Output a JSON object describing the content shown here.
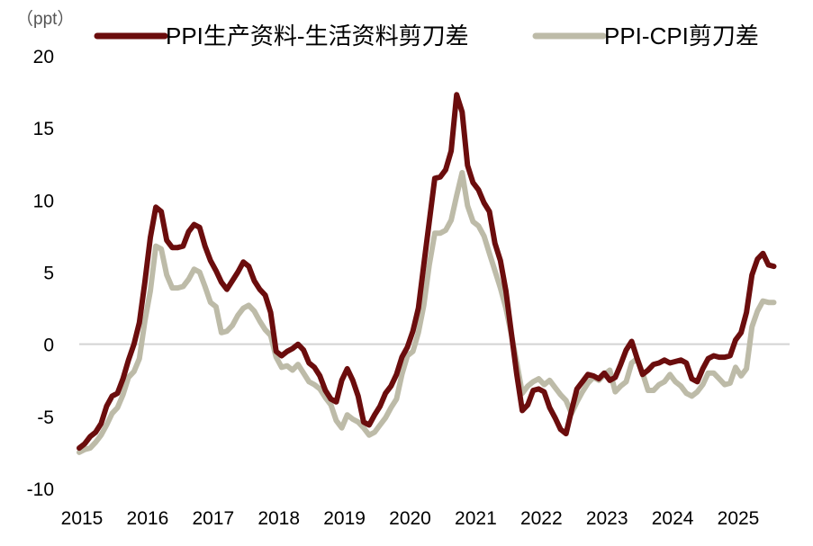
{
  "chart_data": {
    "type": "line",
    "unit_label": "（ppt）",
    "ylim": [
      -10,
      20
    ],
    "yticks": [
      20,
      15,
      10,
      5,
      0,
      -5,
      -10
    ],
    "x_tick_labels": [
      "2015",
      "2016",
      "2017",
      "2018",
      "2019",
      "2020",
      "2021",
      "2022",
      "2023",
      "2024",
      "2025"
    ],
    "x_start": "2015-01",
    "x_end": "2025-09",
    "grid": false,
    "zero_line": true,
    "legend_position": "top",
    "series": [
      {
        "name": "PPI生产资料-生活资料剪刀差",
        "color": "#6b0d0d",
        "values": [
          -7.2,
          -6.9,
          -6.4,
          -6.1,
          -5.5,
          -4.3,
          -3.6,
          -3.4,
          -2.4,
          -1.1,
          0.0,
          1.5,
          4.3,
          7.4,
          9.5,
          9.2,
          7.2,
          6.7,
          6.7,
          6.8,
          7.8,
          8.3,
          8.1,
          6.8,
          5.8,
          5.1,
          4.3,
          3.8,
          4.4,
          5.0,
          5.7,
          5.4,
          4.4,
          3.8,
          3.4,
          2.2,
          -0.5,
          -0.8,
          -0.5,
          -0.3,
          -0.0,
          -0.4,
          -1.3,
          -1.6,
          -2.2,
          -3.2,
          -3.8,
          -4.0,
          -2.5,
          -1.7,
          -2.5,
          -3.6,
          -5.4,
          -5.6,
          -4.9,
          -4.3,
          -3.4,
          -2.9,
          -2.1,
          -0.9,
          -0.2,
          0.9,
          2.5,
          5.5,
          8.5,
          11.5,
          11.6,
          12.1,
          13.4,
          17.3,
          16.1,
          12.4,
          11.2,
          10.7,
          9.8,
          9.2,
          7.0,
          5.8,
          3.7,
          0.8,
          -2.1,
          -4.6,
          -4.2,
          -3.2,
          -3.1,
          -3.3,
          -4.4,
          -5.1,
          -5.9,
          -6.2,
          -4.6,
          -3.1,
          -2.6,
          -2.1,
          -2.2,
          -2.4,
          -2.0,
          -2.5,
          -2.3,
          -1.4,
          -0.4,
          0.2,
          -1.0,
          -2.1,
          -1.8,
          -1.4,
          -1.3,
          -1.1,
          -1.3,
          -1.2,
          -1.1,
          -1.3,
          -2.4,
          -2.6,
          -1.7,
          -1.0,
          -0.8,
          -0.9,
          -0.9,
          -0.8,
          0.3,
          0.8,
          2.2,
          4.8,
          5.9,
          6.3,
          5.5,
          5.4
        ]
      },
      {
        "name": "PPI-CPI剪刀差",
        "color": "#bdbba8",
        "values": [
          -7.5,
          -7.3,
          -7.2,
          -6.8,
          -6.3,
          -5.6,
          -4.8,
          -4.4,
          -3.5,
          -2.3,
          -1.9,
          -1.0,
          1.6,
          3.7,
          6.8,
          6.6,
          4.8,
          3.9,
          3.9,
          4.0,
          4.5,
          5.2,
          5.0,
          4.0,
          2.9,
          2.6,
          0.8,
          0.9,
          1.3,
          2.0,
          2.5,
          2.7,
          2.3,
          1.6,
          1.0,
          0.6,
          -0.9,
          -1.6,
          -1.5,
          -1.8,
          -1.4,
          -2.0,
          -2.6,
          -2.8,
          -3.1,
          -3.7,
          -4.2,
          -5.3,
          -5.8,
          -4.9,
          -5.2,
          -5.4,
          -5.8,
          -6.3,
          -6.1,
          -5.6,
          -5.1,
          -4.4,
          -3.8,
          -2.1,
          -0.8,
          -0.5,
          0.8,
          2.7,
          5.5,
          7.7,
          7.7,
          7.9,
          8.6,
          10.3,
          11.9,
          9.6,
          8.5,
          8.2,
          7.5,
          6.3,
          5.1,
          3.9,
          2.5,
          0.7,
          -1.3,
          -3.4,
          -2.9,
          -2.6,
          -2.4,
          -2.8,
          -2.5,
          -3.0,
          -3.5,
          -3.9,
          -4.8,
          -4.0,
          -3.3,
          -2.7,
          -2.3,
          -2.5,
          -2.1,
          -1.8,
          -3.3,
          -2.9,
          -2.6,
          -1.3,
          -1.0,
          -2.0,
          -3.2,
          -3.2,
          -2.8,
          -2.6,
          -2.1,
          -2.6,
          -2.9,
          -3.4,
          -3.6,
          -3.3,
          -2.8,
          -2.0,
          -2.0,
          -2.4,
          -2.8,
          -2.7,
          -1.6,
          -2.2,
          -1.7,
          1.2,
          2.3,
          3.0,
          2.9,
          2.9
        ]
      }
    ]
  }
}
